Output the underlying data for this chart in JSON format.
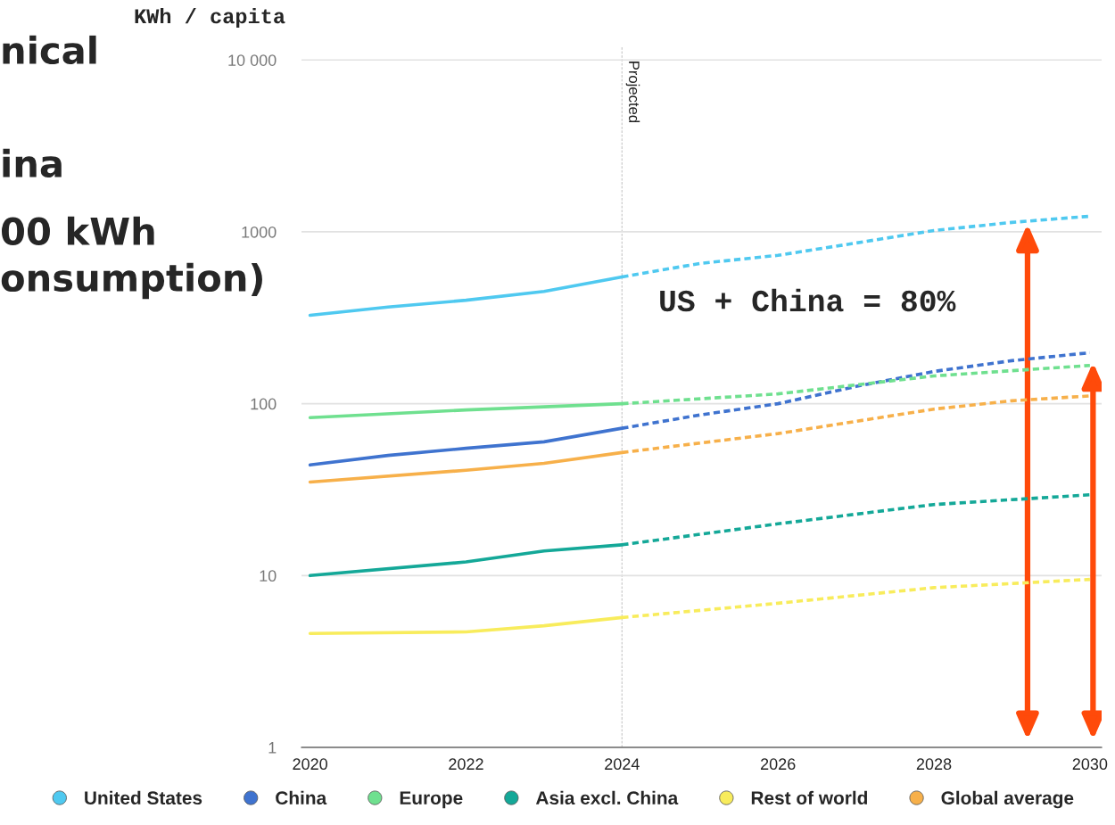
{
  "chart_data": {
    "type": "line",
    "ylabel": "KWh / capita",
    "annotations": [
      "nical",
      "ina",
      "00 kWh",
      "onsumption)",
      "US + China = 80%"
    ],
    "log": "y",
    "ylim": [
      1,
      12000
    ],
    "yticks": [
      1,
      10,
      100,
      1000,
      {
        "value": 10000,
        "label": "10 000"
      }
    ],
    "xlim": [
      2019.89,
      2030.15
    ],
    "xticks": [
      2020,
      2022,
      2024,
      2026,
      2028,
      2030
    ],
    "grid": "y",
    "legend": "bottom",
    "marker": "none",
    "ref_lines": [
      {
        "axis": "x",
        "value": 2024,
        "label": "Projected",
        "color": "#d0d0d0",
        "line_style": "dashed"
      }
    ],
    "series": [
      {
        "name": "United States",
        "color": "#4fc9f0",
        "line_style": "solid",
        "x": [
          2020,
          2021,
          2022,
          2023,
          2024
        ],
        "values": [
          327,
          365,
          400,
          450,
          547
        ]
      },
      {
        "color": "#4fc9f0",
        "line_style": "dashed",
        "x": [
          2024,
          2025,
          2026,
          2027,
          2028,
          2029,
          2030
        ],
        "values": [
          547,
          655,
          730,
          861,
          1018,
          1135,
          1233
        ]
      },
      {
        "name": "China",
        "color": "#3f73cf",
        "line_style": "solid",
        "x": [
          2020,
          2021,
          2022,
          2023,
          2024
        ],
        "values": [
          44,
          50,
          55,
          60,
          72
        ]
      },
      {
        "color": "#3f73cf",
        "line_style": "dashed",
        "x": [
          2024,
          2025,
          2026,
          2027,
          2028,
          2029,
          2030
        ],
        "values": [
          72,
          86,
          100,
          126,
          154,
          178,
          198
        ]
      },
      {
        "name": "Europe",
        "color": "#6fe08f",
        "line_style": "solid",
        "x": [
          2020,
          2022,
          2024
        ],
        "values": [
          83,
          92,
          100
        ]
      },
      {
        "color": "#6fe08f",
        "line_style": "dashed",
        "x": [
          2024,
          2026,
          2028,
          2030
        ],
        "values": [
          100,
          114,
          145,
          167
        ]
      },
      {
        "name": "Asia excl. China",
        "color": "#14a898",
        "line_style": "solid",
        "x": [
          2020,
          2022,
          2023,
          2024
        ],
        "values": [
          10,
          12,
          13.9,
          15.1
        ]
      },
      {
        "color": "#14a898",
        "line_style": "dashed",
        "x": [
          2024,
          2026,
          2028,
          2030
        ],
        "values": [
          15.1,
          20,
          25.9,
          29.5
        ]
      },
      {
        "name": "Rest of world",
        "color": "#f8ec5c",
        "line_style": "solid",
        "x": [
          2020,
          2022,
          2023,
          2024
        ],
        "values": [
          4.6,
          4.7,
          5.1,
          5.7
        ]
      },
      {
        "color": "#f8ec5c",
        "line_style": "dashed",
        "x": [
          2024,
          2026,
          2028,
          2030
        ],
        "values": [
          5.7,
          6.9,
          8.5,
          9.5
        ]
      },
      {
        "name": "Global average",
        "color": "#f7b04a",
        "line_style": "solid",
        "x": [
          2020,
          2022,
          2023,
          2024
        ],
        "values": [
          35,
          41,
          45,
          52
        ]
      },
      {
        "color": "#f7b04a",
        "line_style": "dashed",
        "x": [
          2024,
          2026,
          2028,
          2029,
          2030
        ],
        "values": [
          52,
          67,
          93,
          104,
          111
        ]
      }
    ]
  }
}
